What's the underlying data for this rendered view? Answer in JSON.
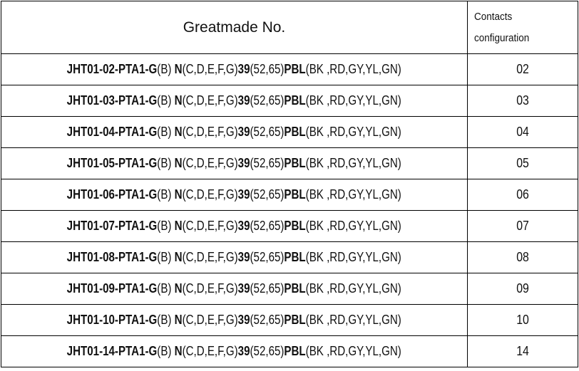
{
  "header": {
    "part_no": "Greatmade No.",
    "contacts_line1": "Contacts",
    "contacts_line2": "configuration"
  },
  "rows": [
    {
      "segments": [
        "JHT01-02-PTA1-G",
        "(B) ",
        "N",
        "(C,D,E,F,G)",
        "39",
        "(52,65)",
        "PBL",
        "(BK ,RD,GY,YL,GN)"
      ],
      "contacts": "02"
    },
    {
      "segments": [
        "JHT01-03-PTA1-G",
        "(B) ",
        "N",
        "(C,D,E,F,G)",
        "39",
        "(52,65)",
        "PBL",
        "(BK ,RD,GY,YL,GN)"
      ],
      "contacts": "03"
    },
    {
      "segments": [
        "JHT01-04-PTA1-G",
        "(B) ",
        "N",
        "(C,D,E,F,G)",
        "39",
        "(52,65)",
        "PBL",
        "(BK ,RD,GY,YL,GN)"
      ],
      "contacts": "04"
    },
    {
      "segments": [
        "JHT01-05-PTA1-G",
        "(B) ",
        "N",
        "(C,D,E,F,G)",
        "39",
        "(52,65)",
        "PBL",
        "(BK ,RD,GY,YL,GN)"
      ],
      "contacts": "05"
    },
    {
      "segments": [
        "JHT01-06-PTA1-G",
        "(B) ",
        "N",
        "(C,D,E,F,G)",
        "39",
        "(52,65)",
        "PBL",
        "(BK ,RD,GY,YL,GN)"
      ],
      "contacts": "06"
    },
    {
      "segments": [
        "JHT01-07-PTA1-G",
        "(B) ",
        "N",
        "(C,D,E,F,G)",
        "39",
        "(52,65)",
        "PBL",
        "(BK ,RD,GY,YL,GN)"
      ],
      "contacts": "07"
    },
    {
      "segments": [
        "JHT01-08-PTA1-G",
        "(B) ",
        "N",
        "(C,D,E,F,G)",
        "39",
        "(52,65)",
        "PBL",
        "(BK ,RD,GY,YL,GN)"
      ],
      "contacts": "08"
    },
    {
      "segments": [
        "JHT01-09-PTA1-G",
        "(B) ",
        "N",
        "(C,D,E,F,G)",
        "39",
        "(52,65)",
        "PBL",
        "(BK ,RD,GY,YL,GN)"
      ],
      "contacts": "09"
    },
    {
      "segments": [
        "JHT01-10-PTA1-G",
        "(B) ",
        "N",
        "(C,D,E,F,G)",
        "39",
        "(52,65)",
        "PBL",
        "(BK ,RD,GY,YL,GN)"
      ],
      "contacts": "10"
    },
    {
      "segments": [
        "JHT01-14-PTA1-G",
        "(B) ",
        "N",
        "(C,D,E,F,G)",
        "39",
        "(52,65)",
        "PBL",
        "(BK ,RD,GY,YL,GN)"
      ],
      "contacts": "14"
    }
  ]
}
